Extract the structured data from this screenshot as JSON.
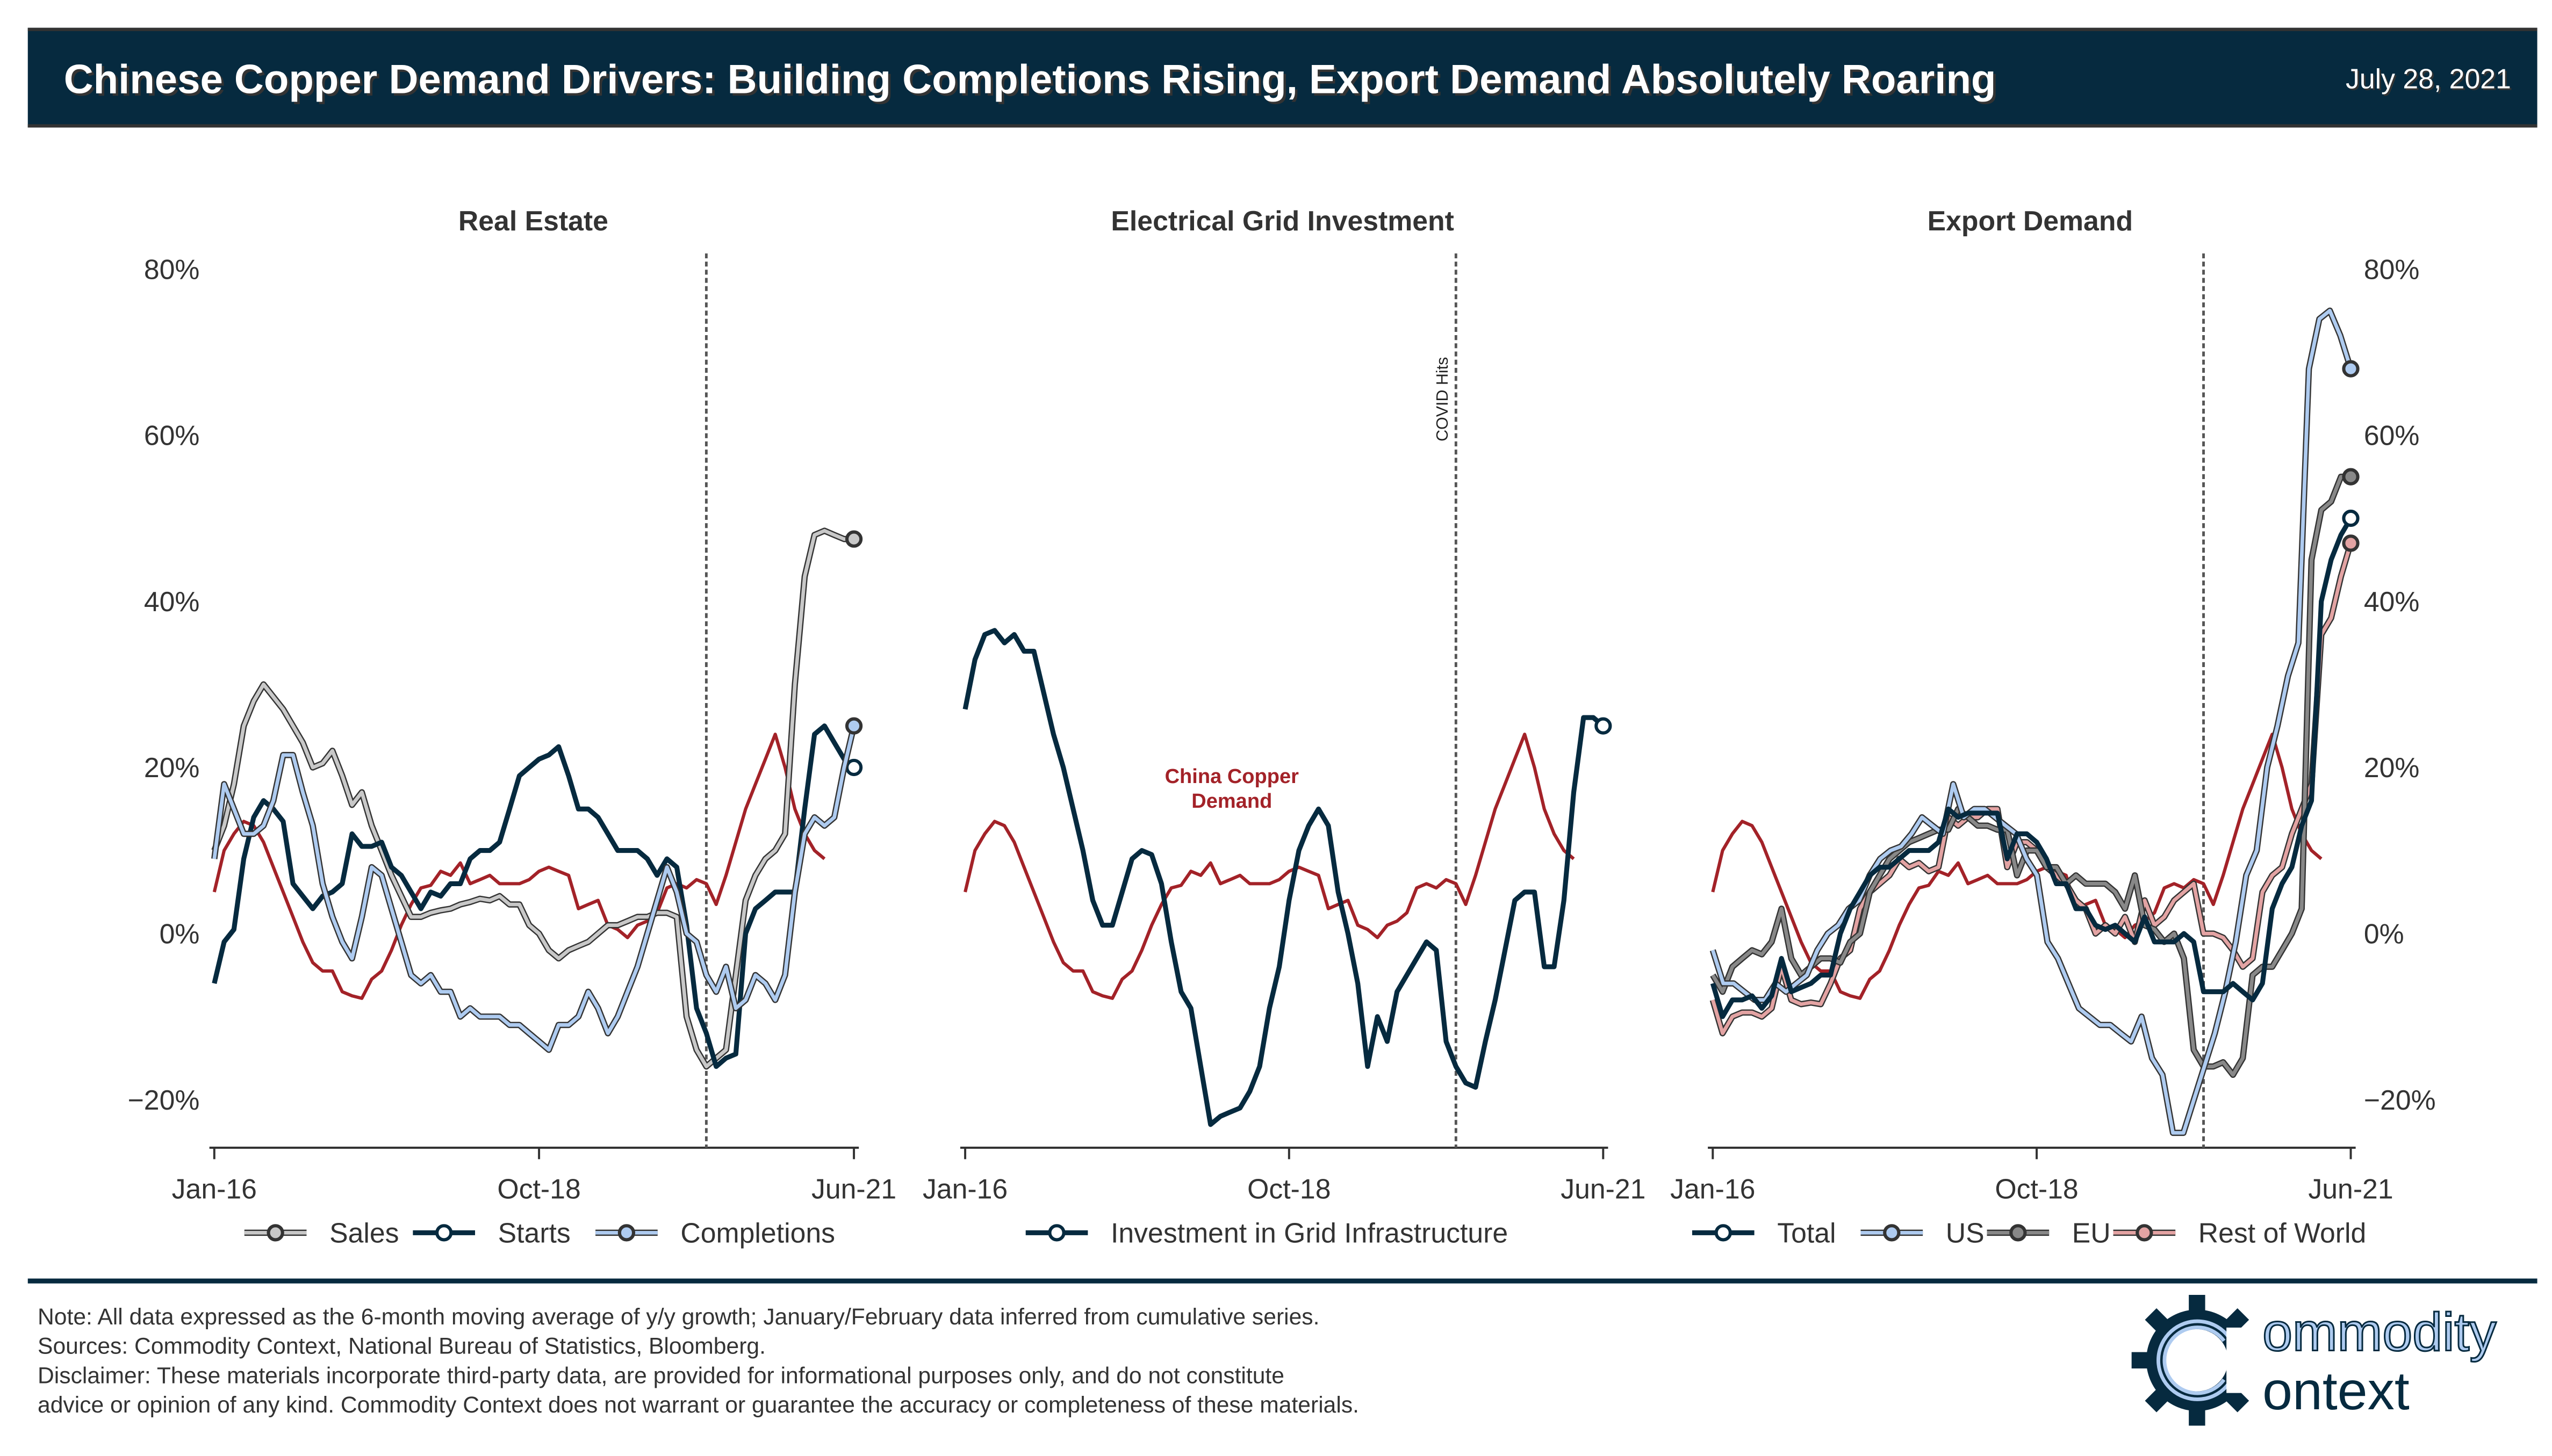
{
  "header": {
    "title": "Chinese Copper Demand Drivers: Building Completions Rising, Export Demand Absolutely Roaring",
    "date": "July 28, 2021"
  },
  "colors": {
    "header_bg": "#062a3f",
    "dark": "#062a3f",
    "light_blue": "#aecbf0",
    "light_gray": "#c8c8c8",
    "gray": "#888888",
    "red": "#a32228",
    "pink": "#e3a3a3"
  },
  "chart_data": [
    {
      "type": "line",
      "title": "Real Estate",
      "ylim": [
        -25,
        82
      ],
      "yticks": [
        -20,
        0,
        20,
        40,
        60,
        80
      ],
      "ytick_labels": [
        "−20%",
        "0%",
        "20%",
        "40%",
        "60%",
        "80%"
      ],
      "xticks": [
        "Jan-16",
        "Oct-18",
        "Jun-21"
      ],
      "x_range": [
        "Jan-16",
        "Jun-21"
      ],
      "vline": "Mar-20",
      "series": [
        {
          "name": "China Copper Demand",
          "in_legend": false,
          "end_month": 62,
          "values": [
            5,
            10,
            12,
            13.5,
            13,
            11,
            8,
            5,
            2,
            -1,
            -3.5,
            -4.5,
            -4.5,
            -7,
            -7.5,
            -7.8,
            -5.5,
            -4.5,
            -2,
            1,
            3.5,
            5.5,
            5.8,
            7.5,
            7,
            8.5,
            6,
            6.5,
            7,
            6,
            6,
            6,
            6.5,
            7.5,
            8,
            7.5,
            7,
            3,
            3.5,
            4,
            1,
            0.5,
            -0.5,
            1,
            1.5,
            2.5,
            5.5,
            6,
            5.5,
            6.5,
            6,
            3.5,
            7,
            11,
            15,
            18,
            21,
            24,
            20,
            15,
            12,
            10,
            9
          ]
        },
        {
          "name": "Sales",
          "values": [
            10,
            13,
            18,
            25,
            28,
            30,
            28.5,
            27,
            25,
            23,
            20,
            20.5,
            22,
            19,
            15.5,
            17,
            13,
            10,
            7,
            4.5,
            2,
            2,
            2.5,
            2.8,
            3,
            3.5,
            3.8,
            4.2,
            4,
            4.5,
            3.5,
            3.5,
            1,
            0,
            -2,
            -3,
            -2,
            -1.5,
            -1,
            0,
            1,
            1,
            1.5,
            2,
            2,
            2.5,
            2.5,
            2,
            -10,
            -14,
            -16,
            -15,
            -14,
            -5,
            4,
            7,
            9,
            10,
            12,
            30,
            43,
            48,
            48.5,
            48,
            47.5,
            47.5
          ]
        },
        {
          "name": "Starts",
          "values": [
            -6,
            -1,
            0.5,
            9,
            14,
            16,
            15,
            13.5,
            6,
            4.5,
            3,
            4.5,
            5,
            6,
            12,
            10.5,
            10.5,
            11,
            8,
            7,
            5,
            3,
            5,
            4.5,
            6,
            6,
            9,
            10,
            10,
            11,
            15,
            19,
            20,
            21,
            21.5,
            22.5,
            19,
            15,
            15,
            14,
            12,
            10,
            10,
            10,
            9,
            7,
            9,
            8,
            1,
            -9,
            -12,
            -16,
            -15,
            -14.5,
            0,
            3,
            4,
            5,
            5,
            5,
            15,
            24,
            25,
            23,
            21,
            20
          ]
        },
        {
          "name": "Completions",
          "values": [
            9,
            18,
            15,
            12,
            12,
            13,
            16,
            21.5,
            21.5,
            17,
            13,
            6,
            2,
            -1,
            -3,
            2,
            8,
            7,
            3,
            -1,
            -5,
            -6,
            -5,
            -7,
            -7,
            -10,
            -9,
            -10,
            -10,
            -10,
            -11,
            -11,
            -12,
            -13,
            -14,
            -11,
            -11,
            -10,
            -7,
            -9,
            -12,
            -10,
            -7,
            -4,
            0,
            4,
            8,
            5,
            0,
            -1,
            -5,
            -7,
            -4,
            -9,
            -8,
            -5,
            -6,
            -8,
            -5,
            5,
            12,
            14,
            13,
            14,
            20,
            25
          ]
        }
      ],
      "legend": [
        "Sales",
        "Starts",
        "Completions"
      ]
    },
    {
      "type": "line",
      "title": "Electrical Grid Investment",
      "ylim": [
        -25,
        82
      ],
      "xticks": [
        "Jan-16",
        "Oct-18",
        "Jun-21"
      ],
      "x_range": [
        "Jan-16",
        "Jun-21"
      ],
      "vline": "Mar-20",
      "vline_label": "COVID Hits",
      "annotation": "China Copper Demand",
      "series": [
        {
          "name": "China Copper Demand",
          "in_legend": false,
          "end_month": 62,
          "values": [
            5,
            10,
            12,
            13.5,
            13,
            11,
            8,
            5,
            2,
            -1,
            -3.5,
            -4.5,
            -4.5,
            -7,
            -7.5,
            -7.8,
            -5.5,
            -4.5,
            -2,
            1,
            3.5,
            5.5,
            5.8,
            7.5,
            7,
            8.5,
            6,
            6.5,
            7,
            6,
            6,
            6,
            6.5,
            7.5,
            8,
            7.5,
            7,
            3,
            3.5,
            4,
            1,
            0.5,
            -0.5,
            1,
            1.5,
            2.5,
            5.5,
            6,
            5.5,
            6.5,
            6,
            3.5,
            7,
            11,
            15,
            18,
            21,
            24,
            20,
            15,
            12,
            10,
            9
          ]
        },
        {
          "name": "Investment in Grid Infrastructure",
          "values": [
            27,
            33,
            36,
            36.5,
            35,
            36,
            34,
            34,
            29,
            24,
            20,
            15,
            10,
            4,
            1,
            1,
            5,
            9,
            10,
            9.5,
            6,
            -1,
            -7,
            -9,
            -16,
            -23,
            -22,
            -21.5,
            -21,
            -19,
            -16,
            -9,
            -4,
            4,
            10,
            13,
            15,
            13,
            5,
            0,
            -6,
            -16,
            -10,
            -13,
            -7,
            -5,
            -3,
            -1,
            -2,
            -13,
            -16,
            -18,
            -18.5,
            -13,
            -8,
            -2,
            4,
            5,
            5,
            -4,
            -4,
            4,
            17,
            26,
            26,
            25
          ]
        }
      ],
      "legend": [
        "Investment in Grid Infrastructure"
      ]
    },
    {
      "type": "line",
      "title": "Export Demand",
      "ylim": [
        -25,
        82
      ],
      "yticks": [
        -20,
        0,
        20,
        40,
        60,
        80
      ],
      "ytick_labels": [
        "−20%",
        "0%",
        "20%",
        "40%",
        "60%",
        "80%"
      ],
      "xticks": [
        "Jan-16",
        "Oct-18",
        "Jun-21"
      ],
      "x_range": [
        "Jan-16",
        "Jun-21"
      ],
      "vline": "Mar-20",
      "series": [
        {
          "name": "China Copper Demand",
          "in_legend": false,
          "end_month": 62,
          "values": [
            5,
            10,
            12,
            13.5,
            13,
            11,
            8,
            5,
            2,
            -1,
            -3.5,
            -4.5,
            -4.5,
            -7,
            -7.5,
            -7.8,
            -5.5,
            -4.5,
            -2,
            1,
            3.5,
            5.5,
            5.8,
            7.5,
            7,
            8.5,
            6,
            6.5,
            7,
            6,
            6,
            6,
            6.5,
            7.5,
            8,
            7.5,
            7,
            3,
            3.5,
            4,
            1,
            0.5,
            -0.5,
            1,
            1.5,
            2.5,
            5.5,
            6,
            5.5,
            6.5,
            6,
            3.5,
            7,
            11,
            15,
            18,
            21,
            24,
            20,
            15,
            12,
            10,
            9
          ]
        },
        {
          "name": "Rest of World",
          "values": [
            -8,
            -12,
            -10,
            -9.5,
            -9.5,
            -10,
            -9,
            -4,
            -8,
            -8.5,
            -8.3,
            -8.5,
            -6,
            -3,
            -2,
            3,
            5,
            6,
            7,
            9,
            8,
            8.5,
            7.5,
            8,
            14,
            13,
            14,
            14,
            15,
            15,
            8,
            11,
            11,
            10,
            8,
            7,
            6,
            4,
            3,
            0,
            1,
            0,
            2,
            -1,
            4,
            1,
            2,
            4,
            5,
            6,
            0,
            0,
            -0.5,
            -2,
            -4,
            -3,
            5,
            7,
            8,
            12,
            15,
            18,
            36,
            38,
            43,
            47
          ]
        },
        {
          "name": "EU",
          "values": [
            -5,
            -7,
            -4,
            -3,
            -2,
            -2.5,
            -1,
            3,
            -3,
            -5,
            -4,
            -3,
            -3,
            -3.5,
            -1,
            0,
            5,
            7,
            9,
            10,
            11,
            11.5,
            12,
            12.5,
            12.5,
            15,
            14,
            13,
            13,
            12.5,
            12.5,
            7,
            10,
            10,
            8,
            8,
            6,
            7,
            6,
            6,
            6,
            5,
            3,
            7,
            1,
            0.5,
            -1,
            0,
            -3,
            -14,
            -16,
            -16,
            -15.5,
            -17,
            -15,
            -5,
            -4,
            -4,
            -2,
            0,
            3,
            45,
            51,
            52,
            55,
            55
          ]
        },
        {
          "name": "US",
          "values": [
            -2,
            -6,
            -6,
            -7,
            -8,
            -8,
            -6,
            -7,
            -6,
            -5,
            -2,
            0,
            1,
            3,
            4,
            7,
            9,
            10,
            10.5,
            12,
            14,
            13,
            12,
            18,
            14,
            15,
            15,
            14,
            13,
            12,
            9,
            7,
            -1,
            -3,
            -6,
            -9,
            -10,
            -11,
            -11,
            -12,
            -13,
            -10,
            -15,
            -17,
            -24,
            -24,
            -20,
            -16,
            -12,
            -7,
            -1,
            7,
            10,
            20,
            25,
            31,
            35,
            68,
            74,
            75,
            72,
            68
          ]
        },
        {
          "name": "Total",
          "values": [
            -6,
            -10,
            -8,
            -8,
            -7.5,
            -9,
            -7.5,
            -3,
            -7,
            -6.5,
            -6,
            -5,
            -5,
            0,
            3,
            5,
            7,
            8,
            8,
            9,
            10,
            10,
            10,
            11,
            15,
            14,
            14.5,
            14.5,
            14.5,
            14.5,
            9,
            12,
            12,
            11,
            9,
            6,
            6,
            3,
            3,
            1,
            0.5,
            1,
            0,
            -1,
            2,
            -1,
            -1,
            -1,
            0,
            -1,
            -7,
            -7,
            -7,
            -6,
            -7,
            -8,
            -6,
            3,
            6,
            8,
            13,
            16,
            40,
            45,
            48,
            50
          ]
        }
      ],
      "legend": [
        "Total",
        "US",
        "EU",
        "Rest of World"
      ]
    }
  ],
  "footer": {
    "notes": [
      "Note: All data expressed as the 6-month moving average of y/y growth; January/February data inferred from cumulative series.",
      "Sources: Commodity Context, National Bureau of Statistics, Bloomberg.",
      "Disclaimer: These materials incorporate third-party data, are provided for informational purposes only, and do not constitute",
      "advice or opinion of any kind. Commodity Context does not warrant or guarantee the accuracy or completeness of these materials."
    ],
    "logo_line1": "ommodity",
    "logo_line2": "ontext"
  }
}
